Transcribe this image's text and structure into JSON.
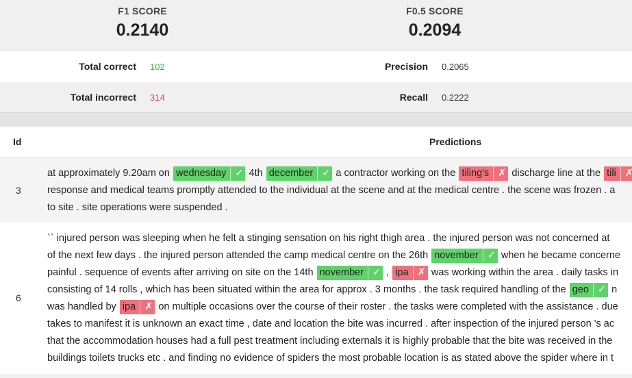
{
  "scores": {
    "f1_label": "F1 SCORE",
    "f1_value": "0.2140",
    "f05_label": "F0.5 SCORE",
    "f05_value": "0.2094"
  },
  "metrics": {
    "total_correct_label": "Total correct",
    "total_correct_value": "102",
    "total_incorrect_label": "Total incorrect",
    "total_incorrect_value": "314",
    "precision_label": "Precision",
    "precision_value": "0.2065",
    "recall_label": "Recall",
    "recall_value": "0.2222"
  },
  "colors": {
    "correct": "#5fd36a",
    "incorrect": "#f0707c"
  },
  "table": {
    "id_header": "Id",
    "predictions_header": "Predictions",
    "rows": [
      {
        "id": "3",
        "lines": [
          [
            {
              "t": "at approximately 9.20am on "
            },
            {
              "tag": "wednesday",
              "ok": true
            },
            {
              "t": " 4th "
            },
            {
              "tag": "december",
              "ok": true
            },
            {
              "t": " a contractor working on the "
            },
            {
              "tag": "tiling's",
              "ok": false
            },
            {
              "t": " discharge line at the "
            },
            {
              "tag": "tili",
              "ok": false
            }
          ],
          [
            {
              "t": "response and medical teams promptly attended to the individual at the scene and at the medical centre . the scene was frozen . a"
            }
          ],
          [
            {
              "t": "to site . site operations were suspended ."
            }
          ]
        ]
      },
      {
        "id": "6",
        "lines": [
          [
            {
              "t": "`` injured person was sleeping when he felt a stinging sensation on his right thigh area . the injured person was not concerned at"
            }
          ],
          [
            {
              "t": "of the next few days . the injured person attended the camp medical centre on the 26th "
            },
            {
              "tag": "november",
              "ok": true
            },
            {
              "t": " when he became concerne"
            }
          ],
          [
            {
              "t": "painful . sequence of events after arriving on site on the 14th "
            },
            {
              "tag": "november",
              "ok": true
            },
            {
              "t": " , "
            },
            {
              "tag": "ipa",
              "ok": false
            },
            {
              "t": " was working within the area . daily tasks in"
            }
          ],
          [
            {
              "t": "consisting of 14 rolls , which has been situated within the area for approx . 3 months . the task required handling of the "
            },
            {
              "tag": "geo",
              "ok": true
            },
            {
              "t": " n"
            }
          ],
          [
            {
              "t": "was handled by "
            },
            {
              "tag": "ipa",
              "ok": false
            },
            {
              "t": " on multiple occasions over the course of their roster . the tasks were completed with the assistance . due"
            }
          ],
          [
            {
              "t": "takes to manifest it is unknown an exact time , date and location the bite was incurred . after inspection of the injured person 's ac"
            }
          ],
          [
            {
              "t": "that the accommodation houses had a full pest treatment including externals it is highly probable that the bite was received in the"
            }
          ],
          [
            {
              "t": "buildings toilets trucks etc . and finding no evidence of spiders the most probable location is as stated above the spider where in t"
            }
          ]
        ]
      }
    ]
  },
  "icons": {
    "correct": "check-icon",
    "incorrect": "cross-icon",
    "correct_glyph": "✓",
    "incorrect_glyph": "✗"
  }
}
